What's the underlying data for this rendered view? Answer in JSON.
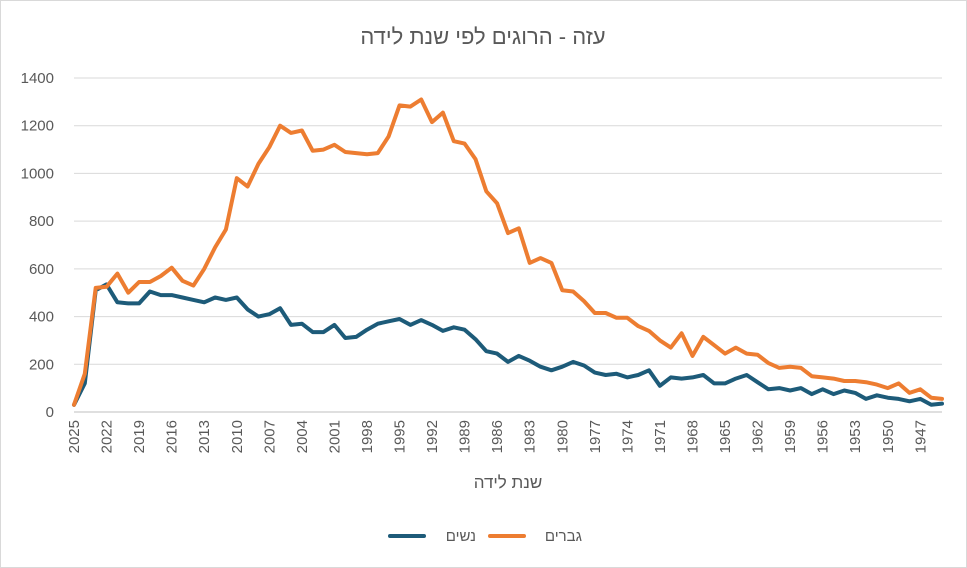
{
  "chart_data": {
    "type": "line",
    "title": "עזה - הרוגים לפי שנת לידה",
    "xlabel": "שנת לידה",
    "ylabel": "",
    "ylim": [
      0,
      1400
    ],
    "y_ticks": [
      0,
      200,
      400,
      600,
      800,
      1000,
      1200,
      1400
    ],
    "x_order": "descending",
    "x_tick_labels": [
      "2025",
      "2022",
      "2019",
      "2016",
      "2013",
      "2010",
      "2007",
      "2004",
      "2001",
      "1998",
      "1995",
      "1992",
      "1989",
      "1986",
      "1983",
      "1980",
      "1977",
      "1974",
      "1971",
      "1968",
      "1965",
      "1962",
      "1959",
      "1956",
      "1953",
      "1950",
      "1947"
    ],
    "grid": "horizontal",
    "legend_position": "bottom",
    "x": [
      2025,
      2024,
      2023,
      2022,
      2021,
      2020,
      2019,
      2018,
      2017,
      2016,
      2015,
      2014,
      2013,
      2012,
      2011,
      2010,
      2009,
      2008,
      2007,
      2006,
      2005,
      2004,
      2003,
      2002,
      2001,
      2000,
      1999,
      1998,
      1997,
      1996,
      1995,
      1994,
      1993,
      1992,
      1991,
      1990,
      1989,
      1988,
      1987,
      1986,
      1985,
      1984,
      1983,
      1982,
      1981,
      1980,
      1979,
      1978,
      1977,
      1976,
      1975,
      1974,
      1973,
      1972,
      1971,
      1970,
      1969,
      1968,
      1967,
      1966,
      1965,
      1964,
      1963,
      1962,
      1961,
      1960,
      1959,
      1958,
      1957,
      1956,
      1955,
      1954,
      1953,
      1952,
      1951,
      1950,
      1949,
      1948,
      1947,
      1946,
      1945
    ],
    "series": [
      {
        "name": "נשים",
        "color": "#1d5b79",
        "values": [
          30,
          120,
          510,
          535,
          460,
          455,
          455,
          505,
          490,
          490,
          480,
          470,
          460,
          480,
          470,
          480,
          430,
          400,
          410,
          435,
          365,
          370,
          335,
          335,
          365,
          310,
          315,
          345,
          370,
          380,
          390,
          365,
          385,
          365,
          340,
          355,
          345,
          305,
          255,
          245,
          210,
          235,
          215,
          190,
          175,
          190,
          210,
          195,
          165,
          155,
          160,
          145,
          155,
          175,
          110,
          145,
          140,
          145,
          155,
          120,
          120,
          140,
          155,
          125,
          95,
          100,
          90,
          100,
          75,
          95,
          75,
          90,
          80,
          55,
          70,
          60,
          55,
          45,
          55,
          30,
          35
        ]
      },
      {
        "name": "גברים",
        "color": "#ed7d31",
        "values": [
          30,
          160,
          520,
          525,
          580,
          500,
          545,
          545,
          570,
          605,
          550,
          530,
          600,
          690,
          765,
          980,
          945,
          1040,
          1110,
          1200,
          1170,
          1180,
          1095,
          1100,
          1120,
          1090,
          1085,
          1080,
          1085,
          1155,
          1285,
          1280,
          1310,
          1215,
          1255,
          1135,
          1125,
          1060,
          925,
          875,
          750,
          770,
          625,
          645,
          625,
          510,
          505,
          465,
          415,
          415,
          395,
          395,
          360,
          340,
          300,
          270,
          330,
          235,
          315,
          280,
          245,
          270,
          245,
          240,
          205,
          185,
          190,
          185,
          150,
          145,
          140,
          130,
          130,
          125,
          115,
          100,
          120,
          80,
          95,
          60,
          55
        ]
      }
    ]
  }
}
